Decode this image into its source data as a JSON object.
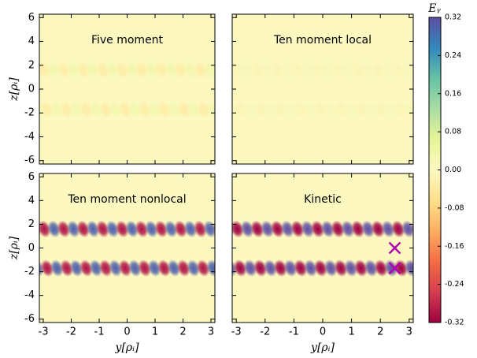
{
  "chart_data": {
    "type": "heatmap",
    "colorbar_label": "Eᵧ",
    "xlabel": "y[ρᵢ]",
    "ylabel": "z[ρᵢ]",
    "xlim": [
      -3.1416,
      3.1416
    ],
    "ylim": [
      -6.2832,
      6.2832
    ],
    "xticks": [
      -3,
      -2,
      -1,
      0,
      1,
      2,
      3
    ],
    "yticks": [
      -6,
      -4,
      -2,
      0,
      2,
      4,
      6
    ],
    "clim": [
      -0.32,
      0.32
    ],
    "cticks": [
      0.32,
      0.24,
      0.16,
      0.08,
      {
        "value": 0,
        "label": "0.00"
      },
      -0.08,
      -0.16,
      -0.24,
      -0.32
    ],
    "colormap": [
      "#9e0142",
      "#d53e4f",
      "#f46d43",
      "#fdae61",
      "#fee08b",
      "#fcf8c0",
      "#e6f598",
      "#abdda4",
      "#66c2a5",
      "#3288bd",
      "#5e4fa2"
    ],
    "band_z": [
      1.6,
      -1.7
    ],
    "cycles": 9,
    "panels": [
      {
        "title": "Five moment",
        "amplitude": 0.03
      },
      {
        "title": "Ten moment local",
        "amplitude": 0.012
      },
      {
        "title": "Ten moment nonlocal",
        "amplitude": 0.3
      },
      {
        "title": "Kinetic",
        "amplitude": 0.32
      }
    ],
    "markers": {
      "color": "#b000b0",
      "x": [
        2.5,
        2.5
      ],
      "z": [
        0,
        -1.7
      ]
    }
  }
}
